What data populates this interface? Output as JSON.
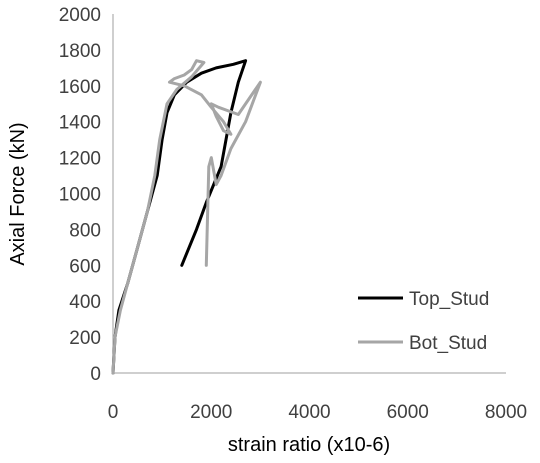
{
  "chart_data": {
    "type": "line",
    "xlabel": "strain ratio (x10-6)",
    "ylabel": "Axial Force (kN)",
    "xlim": [
      0,
      8000
    ],
    "ylim": [
      0,
      2000
    ],
    "x_ticks": [
      "0",
      "2000",
      "4000",
      "6000",
      "8000"
    ],
    "y_ticks": [
      "0",
      "200",
      "400",
      "600",
      "800",
      "1000",
      "1200",
      "1400",
      "1600",
      "1800",
      "2000"
    ],
    "grid": false,
    "legend_position": "right",
    "series": [
      {
        "name": "Top_Stud",
        "color": "#000000",
        "points": [
          [
            0,
            0
          ],
          [
            40,
            200
          ],
          [
            120,
            350
          ],
          [
            300,
            500
          ],
          [
            500,
            700
          ],
          [
            700,
            900
          ],
          [
            900,
            1100
          ],
          [
            1000,
            1300
          ],
          [
            1100,
            1450
          ],
          [
            1250,
            1550
          ],
          [
            1500,
            1620
          ],
          [
            1800,
            1670
          ],
          [
            2100,
            1700
          ],
          [
            2450,
            1720
          ],
          [
            2700,
            1740
          ],
          [
            2550,
            1620
          ],
          [
            2400,
            1450
          ],
          [
            2300,
            1300
          ],
          [
            2200,
            1150
          ],
          [
            1900,
            950
          ],
          [
            1700,
            800
          ],
          [
            1400,
            600
          ]
        ]
      },
      {
        "name": "Bot_Stud",
        "color": "#a6a6a6",
        "points": [
          [
            0,
            0
          ],
          [
            40,
            200
          ],
          [
            150,
            350
          ],
          [
            300,
            500
          ],
          [
            500,
            700
          ],
          [
            700,
            900
          ],
          [
            850,
            1100
          ],
          [
            950,
            1300
          ],
          [
            1100,
            1500
          ],
          [
            1300,
            1580
          ],
          [
            1600,
            1650
          ],
          [
            1850,
            1730
          ],
          [
            1700,
            1740
          ],
          [
            1600,
            1690
          ],
          [
            1450,
            1660
          ],
          [
            1250,
            1640
          ],
          [
            1150,
            1620
          ],
          [
            1450,
            1600
          ],
          [
            1800,
            1550
          ],
          [
            2000,
            1480
          ],
          [
            2250,
            1400
          ],
          [
            2400,
            1330
          ],
          [
            2250,
            1350
          ],
          [
            2100,
            1430
          ],
          [
            2000,
            1500
          ],
          [
            2150,
            1480
          ],
          [
            2350,
            1460
          ],
          [
            2550,
            1440
          ],
          [
            2800,
            1540
          ],
          [
            3000,
            1620
          ],
          [
            2700,
            1400
          ],
          [
            2400,
            1250
          ],
          [
            2200,
            1100
          ],
          [
            2100,
            1050
          ],
          [
            2000,
            1200
          ],
          [
            1950,
            1150
          ],
          [
            1900,
            600
          ]
        ]
      }
    ]
  }
}
